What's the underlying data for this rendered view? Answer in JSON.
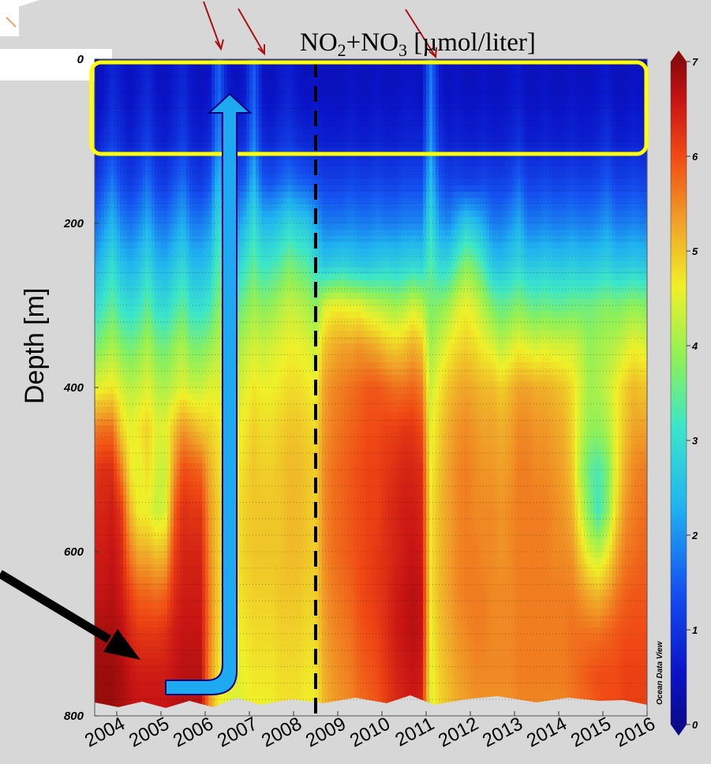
{
  "chart_data": {
    "type": "heatmap",
    "title_parts": [
      "NO",
      "2",
      "+NO",
      "3",
      " [µmol/liter]"
    ],
    "ylabel": "Depth [m]",
    "y_ticks": [
      "0",
      "200",
      "400",
      "600",
      "800"
    ],
    "x_ticks": [
      "2004",
      "2005",
      "2006",
      "2007",
      "2008",
      "2009",
      "2010",
      "2011",
      "2012",
      "2013",
      "2014",
      "2015",
      "2016"
    ],
    "ylim": [
      0,
      800
    ],
    "xlim": [
      2003.5,
      2016.0
    ],
    "colorbar": {
      "ticks": [
        "0",
        "1",
        "2",
        "3",
        "4",
        "5",
        "6",
        "7"
      ],
      "range": [
        0,
        7
      ]
    },
    "credit": "Ocean Data View",
    "dashed_line_x": 2008.5,
    "highlight_box_depth": [
      0,
      110
    ],
    "times": [
      2003.5,
      2003.7,
      2003.9,
      2004.1,
      2004.3,
      2004.5,
      2004.7,
      2004.9,
      2005.1,
      2005.3,
      2005.5,
      2005.7,
      2005.9,
      2006.1,
      2006.3,
      2006.5,
      2006.7,
      2006.9,
      2007.1,
      2007.3,
      2007.5,
      2007.7,
      2007.9,
      2008.1,
      2008.3,
      2008.5,
      2008.7,
      2008.9,
      2009.1,
      2009.3,
      2009.5,
      2009.7,
      2009.9,
      2010.1,
      2010.3,
      2010.5,
      2010.7,
      2010.9,
      2011.1,
      2011.3,
      2011.5,
      2011.7,
      2011.9,
      2012.1,
      2012.3,
      2012.5,
      2012.7,
      2012.9,
      2013.1,
      2013.3,
      2013.5,
      2013.7,
      2013.9,
      2014.1,
      2014.3,
      2014.5,
      2014.7,
      2014.9,
      2015.1,
      2015.3,
      2015.5,
      2015.7,
      2015.9
    ],
    "depths": [
      0,
      50,
      100,
      150,
      200,
      250,
      300,
      350,
      400,
      450,
      500,
      550,
      600,
      650,
      700,
      750,
      800
    ],
    "values": [
      [
        0.3,
        0.5,
        0.8,
        0.6,
        0.4,
        0.6,
        0.8,
        0.5,
        0.4,
        0.6,
        0.8,
        0.5,
        0.4,
        0.5,
        1.6,
        0.6,
        0.4,
        0.6,
        1.5,
        0.5,
        0.4,
        0.6,
        0.7,
        0.5,
        0.4,
        0.5,
        0.4,
        0.4,
        0.4,
        0.5,
        0.4,
        0.4,
        0.5,
        0.4,
        0.4,
        0.5,
        0.5,
        0.4,
        1.8,
        0.6,
        0.4,
        0.5,
        0.4,
        0.4,
        0.5,
        0.4,
        0.4,
        0.5,
        0.6,
        0.4,
        0.4,
        0.5,
        0.4,
        0.4,
        0.5,
        0.4,
        0.4,
        0.5,
        0.6,
        0.4,
        0.4,
        0.5,
        0.4
      ],
      [
        0.4,
        0.6,
        0.9,
        0.7,
        0.5,
        0.7,
        0.9,
        0.6,
        0.5,
        0.7,
        0.9,
        0.6,
        0.5,
        0.6,
        1.7,
        0.7,
        0.5,
        0.7,
        1.6,
        0.6,
        0.5,
        0.7,
        0.8,
        0.6,
        0.5,
        0.6,
        0.5,
        0.5,
        0.5,
        0.6,
        0.5,
        0.5,
        0.6,
        0.5,
        0.5,
        0.6,
        0.6,
        0.5,
        1.9,
        0.7,
        0.5,
        0.6,
        0.5,
        0.5,
        0.6,
        0.5,
        0.5,
        0.6,
        0.7,
        0.5,
        0.5,
        0.6,
        0.5,
        0.5,
        0.6,
        0.5,
        0.5,
        0.6,
        0.7,
        0.5,
        0.5,
        0.6,
        0.5
      ],
      [
        0.6,
        0.9,
        1.2,
        0.9,
        0.7,
        0.9,
        1.2,
        0.8,
        0.7,
        0.9,
        1.2,
        0.8,
        0.7,
        0.9,
        2.0,
        0.9,
        0.8,
        1.0,
        1.9,
        0.9,
        0.8,
        1.0,
        1.1,
        0.9,
        0.8,
        0.8,
        0.7,
        0.7,
        0.7,
        0.8,
        0.7,
        0.7,
        0.8,
        0.7,
        0.7,
        0.8,
        0.8,
        0.8,
        2.1,
        1.0,
        0.7,
        0.8,
        0.7,
        0.7,
        0.8,
        0.7,
        0.7,
        0.8,
        1.0,
        0.7,
        0.7,
        0.8,
        0.7,
        0.7,
        0.8,
        0.7,
        0.7,
        0.8,
        1.0,
        0.7,
        0.7,
        0.8,
        0.7
      ],
      [
        1.0,
        1.4,
        1.8,
        1.3,
        1.1,
        1.3,
        1.7,
        1.2,
        1.1,
        1.4,
        1.7,
        1.2,
        1.1,
        1.4,
        2.5,
        1.4,
        1.3,
        1.6,
        2.4,
        1.5,
        1.4,
        1.6,
        1.8,
        1.6,
        1.5,
        1.4,
        1.2,
        1.2,
        1.2,
        1.3,
        1.2,
        1.2,
        1.3,
        1.2,
        1.2,
        1.3,
        1.3,
        1.3,
        2.5,
        1.5,
        1.2,
        1.3,
        1.2,
        1.2,
        1.3,
        1.2,
        1.2,
        1.3,
        1.6,
        1.2,
        1.2,
        1.3,
        1.2,
        1.2,
        1.3,
        1.2,
        1.2,
        1.3,
        1.5,
        1.2,
        1.2,
        1.3,
        1.2
      ],
      [
        1.6,
        2.0,
        2.4,
        1.9,
        1.7,
        1.9,
        2.3,
        1.8,
        1.7,
        2.0,
        2.3,
        1.8,
        1.8,
        2.0,
        3.0,
        2.2,
        2.0,
        2.4,
        3.0,
        2.4,
        2.4,
        2.6,
        2.9,
        2.7,
        2.6,
        2.2,
        1.8,
        1.8,
        1.8,
        1.9,
        1.8,
        1.8,
        1.9,
        1.8,
        1.8,
        1.9,
        1.9,
        1.9,
        3.0,
        2.1,
        1.9,
        2.3,
        2.7,
        2.5,
        2.2,
        1.8,
        1.8,
        2.0,
        2.3,
        1.8,
        1.8,
        1.9,
        1.8,
        1.8,
        1.9,
        1.8,
        1.8,
        1.9,
        2.1,
        1.8,
        1.8,
        1.9,
        1.8
      ],
      [
        2.2,
        2.6,
        3.0,
        2.5,
        2.3,
        2.5,
        2.9,
        2.4,
        2.3,
        2.6,
        2.9,
        2.4,
        2.4,
        2.6,
        3.4,
        2.9,
        2.7,
        3.1,
        3.5,
        3.1,
        3.2,
        3.4,
        3.7,
        3.5,
        3.4,
        3.0,
        2.6,
        2.7,
        2.8,
        2.7,
        2.6,
        2.6,
        2.7,
        2.8,
        2.7,
        2.8,
        2.9,
        2.8,
        3.4,
        2.9,
        2.9,
        3.4,
        3.8,
        3.6,
        3.2,
        2.6,
        2.5,
        2.7,
        2.9,
        2.6,
        2.6,
        2.7,
        2.6,
        2.6,
        2.7,
        2.6,
        2.6,
        2.7,
        2.8,
        2.6,
        2.6,
        2.7,
        2.6
      ],
      [
        2.9,
        3.2,
        3.5,
        3.1,
        2.9,
        3.1,
        3.5,
        3.0,
        2.9,
        3.2,
        3.5,
        3.0,
        3.0,
        3.2,
        3.8,
        3.5,
        3.4,
        3.7,
        4.0,
        3.8,
        3.9,
        4.1,
        4.3,
        4.2,
        4.1,
        3.8,
        4.4,
        4.6,
        4.6,
        4.5,
        4.5,
        4.3,
        4.2,
        4.1,
        4.0,
        4.1,
        4.4,
        4.2,
        3.7,
        3.8,
        4.0,
        4.4,
        4.6,
        4.4,
        4.1,
        3.7,
        3.5,
        3.6,
        3.8,
        3.6,
        3.5,
        3.6,
        3.5,
        3.5,
        3.6,
        3.6,
        3.6,
        3.7,
        3.8,
        3.7,
        3.8,
        3.9,
        3.8
      ],
      [
        3.6,
        3.9,
        4.1,
        3.8,
        3.6,
        3.8,
        4.1,
        3.7,
        3.6,
        3.9,
        4.1,
        3.7,
        3.7,
        3.9,
        4.2,
        4.1,
        4.0,
        4.2,
        4.4,
        4.3,
        4.4,
        4.5,
        4.6,
        4.6,
        4.5,
        4.3,
        5.0,
        5.2,
        5.3,
        5.3,
        5.4,
        5.3,
        5.2,
        5.0,
        4.9,
        5.0,
        5.2,
        5.0,
        4.0,
        4.3,
        4.6,
        4.8,
        4.9,
        4.8,
        4.6,
        4.5,
        4.2,
        4.4,
        4.6,
        4.5,
        4.4,
        4.5,
        4.4,
        4.4,
        4.4,
        4.2,
        3.9,
        4.0,
        4.1,
        4.2,
        4.4,
        4.6,
        4.5
      ],
      [
        4.5,
        4.6,
        4.7,
        4.4,
        4.2,
        4.3,
        4.5,
        4.2,
        4.1,
        4.3,
        4.5,
        4.3,
        4.3,
        4.5,
        4.5,
        4.4,
        4.3,
        4.5,
        4.7,
        4.6,
        4.6,
        4.7,
        4.8,
        4.8,
        4.7,
        4.6,
        5.3,
        5.5,
        5.6,
        5.7,
        5.8,
        5.9,
        5.9,
        5.8,
        5.7,
        5.7,
        5.8,
        5.6,
        4.3,
        4.7,
        5.0,
        5.2,
        5.3,
        5.2,
        5.1,
        5.1,
        4.9,
        5.1,
        5.3,
        5.3,
        5.2,
        5.2,
        5.1,
        5.0,
        4.8,
        4.4,
        4.0,
        4.1,
        4.3,
        4.6,
        4.9,
        5.1,
        5.0
      ],
      [
        5.6,
        5.7,
        5.7,
        4.9,
        4.5,
        4.7,
        4.9,
        4.5,
        4.5,
        5.0,
        5.4,
        5.2,
        5.0,
        4.9,
        4.7,
        4.6,
        4.5,
        4.7,
        4.9,
        4.8,
        4.8,
        4.9,
        5.0,
        5.0,
        4.9,
        4.8,
        5.4,
        5.6,
        5.7,
        5.8,
        5.9,
        6.0,
        6.0,
        6.1,
        6.1,
        6.2,
        6.2,
        6.0,
        4.5,
        4.9,
        5.2,
        5.4,
        5.5,
        5.4,
        5.3,
        5.3,
        5.2,
        5.3,
        5.5,
        5.5,
        5.4,
        5.4,
        5.3,
        5.2,
        4.9,
        4.3,
        3.9,
        3.9,
        4.1,
        4.6,
        5.0,
        5.3,
        5.3
      ],
      [
        6.2,
        6.3,
        6.3,
        5.6,
        4.7,
        4.5,
        4.8,
        4.4,
        4.3,
        5.4,
        6.0,
        5.9,
        5.8,
        5.2,
        4.8,
        4.7,
        4.6,
        4.8,
        5.0,
        4.9,
        4.9,
        5.0,
        5.1,
        5.1,
        5.0,
        4.9,
        5.5,
        5.7,
        5.8,
        5.9,
        6.0,
        6.1,
        6.1,
        6.2,
        6.3,
        6.4,
        6.4,
        6.3,
        4.6,
        5.0,
        5.3,
        5.5,
        5.6,
        5.5,
        5.4,
        5.4,
        5.3,
        5.4,
        5.6,
        5.6,
        5.5,
        5.5,
        5.4,
        5.3,
        5.0,
        4.1,
        3.5,
        3.3,
        3.7,
        4.6,
        5.2,
        5.5,
        5.6
      ],
      [
        6.4,
        6.4,
        6.5,
        6.2,
        5.1,
        4.6,
        4.6,
        4.3,
        4.4,
        5.8,
        6.3,
        6.2,
        6.2,
        5.4,
        4.9,
        4.8,
        4.7,
        4.9,
        5.0,
        5.0,
        5.0,
        5.0,
        5.1,
        5.1,
        5.0,
        4.9,
        5.5,
        5.7,
        5.8,
        5.9,
        6.0,
        6.1,
        6.1,
        6.3,
        6.4,
        6.5,
        6.5,
        6.4,
        4.7,
        5.1,
        5.3,
        5.5,
        5.6,
        5.5,
        5.5,
        5.5,
        5.4,
        5.5,
        5.6,
        5.6,
        5.6,
        5.6,
        5.5,
        5.4,
        5.2,
        4.4,
        3.7,
        3.2,
        3.8,
        4.8,
        5.4,
        5.6,
        5.7
      ],
      [
        6.5,
        6.5,
        6.6,
        6.4,
        5.6,
        5.2,
        5.2,
        5.0,
        5.1,
        6.1,
        6.4,
        6.4,
        6.4,
        5.5,
        4.9,
        4.8,
        4.7,
        4.9,
        5.0,
        5.0,
        5.0,
        5.0,
        5.1,
        5.1,
        5.0,
        4.9,
        5.5,
        5.7,
        5.8,
        5.9,
        6.0,
        6.1,
        6.2,
        6.3,
        6.4,
        6.5,
        6.6,
        6.5,
        4.7,
        5.1,
        5.3,
        5.5,
        5.6,
        5.6,
        5.5,
        5.5,
        5.4,
        5.5,
        5.6,
        5.6,
        5.6,
        5.6,
        5.5,
        5.5,
        5.4,
        4.9,
        4.4,
        4.2,
        4.6,
        5.2,
        5.6,
        5.7,
        5.8
      ],
      [
        6.6,
        6.6,
        6.7,
        6.5,
        6.1,
        5.8,
        5.8,
        5.7,
        5.8,
        6.3,
        6.5,
        6.5,
        6.5,
        5.6,
        4.9,
        4.8,
        4.7,
        4.8,
        4.9,
        4.9,
        4.9,
        5.0,
        5.0,
        5.0,
        4.9,
        4.9,
        5.4,
        5.6,
        5.7,
        5.8,
        6.0,
        6.1,
        6.2,
        6.3,
        6.5,
        6.6,
        6.7,
        6.6,
        4.7,
        5.1,
        5.3,
        5.5,
        5.6,
        5.6,
        5.6,
        5.5,
        5.5,
        5.5,
        5.6,
        5.6,
        5.6,
        5.6,
        5.6,
        5.6,
        5.6,
        5.4,
        5.2,
        5.1,
        5.3,
        5.6,
        5.8,
        5.9,
        5.9
      ],
      [
        6.8,
        6.8,
        6.8,
        6.7,
        6.4,
        6.2,
        6.2,
        6.2,
        6.3,
        6.5,
        6.6,
        6.6,
        6.6,
        5.6,
        4.8,
        4.7,
        4.6,
        4.7,
        4.8,
        4.8,
        4.8,
        4.9,
        4.9,
        4.9,
        4.8,
        4.8,
        5.3,
        5.5,
        5.6,
        5.7,
        5.9,
        6.0,
        6.1,
        6.3,
        6.5,
        6.6,
        6.7,
        6.6,
        4.6,
        5.0,
        5.2,
        5.4,
        5.5,
        5.6,
        5.6,
        5.5,
        5.5,
        5.5,
        5.6,
        5.6,
        5.6,
        5.6,
        5.6,
        5.6,
        5.7,
        5.7,
        5.7,
        5.7,
        5.8,
        5.9,
        6.0,
        6.0,
        6.0
      ],
      [
        6.9,
        6.9,
        6.9,
        6.8,
        6.6,
        6.5,
        6.5,
        6.5,
        6.5,
        6.6,
        6.7,
        6.7,
        6.7,
        5.5,
        4.7,
        4.6,
        4.5,
        4.6,
        4.7,
        4.7,
        4.7,
        4.8,
        4.8,
        4.8,
        4.7,
        4.7,
        5.2,
        5.4,
        5.5,
        5.6,
        5.8,
        5.9,
        6.0,
        6.2,
        6.4,
        6.5,
        6.6,
        6.5,
        4.5,
        4.9,
        5.1,
        5.3,
        5.4,
        5.5,
        5.5,
        5.5,
        5.5,
        5.5,
        5.6,
        5.6,
        5.6,
        5.6,
        5.6,
        5.6,
        5.7,
        5.8,
        5.9,
        6.0,
        6.0,
        6.0,
        6.1,
        6.1,
        6.1
      ],
      [
        6.9,
        6.9,
        6.9,
        6.8,
        6.7,
        6.6,
        6.6,
        6.6,
        6.6,
        6.7,
        6.7,
        6.7,
        6.7,
        5.4,
        4.6,
        4.5,
        4.4,
        4.5,
        4.6,
        4.6,
        4.6,
        4.7,
        4.7,
        4.7,
        4.6,
        4.6,
        5.1,
        5.3,
        5.4,
        5.5,
        5.7,
        5.8,
        5.9,
        6.1,
        6.3,
        6.4,
        6.5,
        6.4,
        4.4,
        4.8,
        5.0,
        5.2,
        5.3,
        5.4,
        5.4,
        5.4,
        5.4,
        5.4,
        5.5,
        5.5,
        5.5,
        5.5,
        5.5,
        5.5,
        5.6,
        5.7,
        5.8,
        5.9,
        6.0,
        6.0,
        6.1,
        6.1,
        6.1
      ]
    ]
  }
}
